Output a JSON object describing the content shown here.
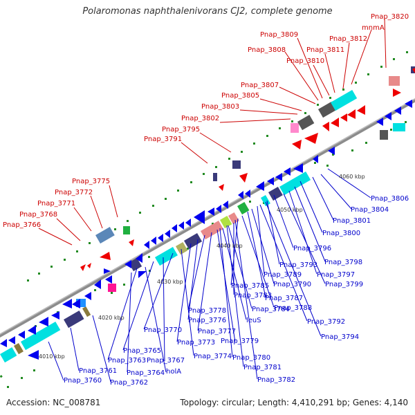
{
  "title": "Polaromonas naphthalenivorans CJ2, complete genome",
  "footer": {
    "accession": "Accession: NC_008781",
    "summary": "Topology: circular; Length: 4,410,291 bp; Genes: 4,140"
  },
  "colors": {
    "upper_label": "#cc0000",
    "lower_label": "#0000cc",
    "backbone": "#8c8c8c",
    "tick_dot": "#228b22"
  },
  "ticks": [
    "4010 kbp",
    "4020 kbp",
    "4030 kbp",
    "4040 kbp",
    "4050 kbp",
    "4060 kbp"
  ],
  "upper_labels": [
    "Pnap_3820",
    "mnmA",
    "Pnap_3812",
    "Pnap_3811",
    "Pnap_3810",
    "Pnap_3809",
    "Pnap_3808",
    "Pnap_3807",
    "Pnap_3805",
    "Pnap_3803",
    "Pnap_3802",
    "Pnap_3795",
    "Pnap_3791",
    "Pnap_3775",
    "Pnap_3772",
    "Pnap_3771",
    "Pnap_3768",
    "Pnap_3766"
  ],
  "lower_labels": [
    "Pnap_3806",
    "Pnap_3804",
    "Pnap_3801",
    "Pnap_3800",
    "Pnap_3796",
    "Pnap_3798",
    "Pnap_3793",
    "Pnap_3797",
    "Pnap_3789",
    "Pnap_3799",
    "Pnap_3790",
    "Pnap_3785",
    "Pnap_3787",
    "Pnap_3783",
    "Pnap_3788",
    "Pnap_3784",
    "Pnap_3778",
    "Pnap_3792",
    "Pnap_3776",
    "leuS",
    "Pnap_3777",
    "Pnap_3770",
    "Pnap_3794",
    "Pnap_3773",
    "Pnap_3779",
    "Pnap_3765",
    "Pnap_3774",
    "Pnap_3780",
    "Pnap_3763",
    "Pnap_3767",
    "Pnap_3781",
    "Pnap_3761",
    "Pnap_3764",
    "holA",
    "Pnap_3782",
    "Pnap_3760",
    "Pnap_3762"
  ]
}
